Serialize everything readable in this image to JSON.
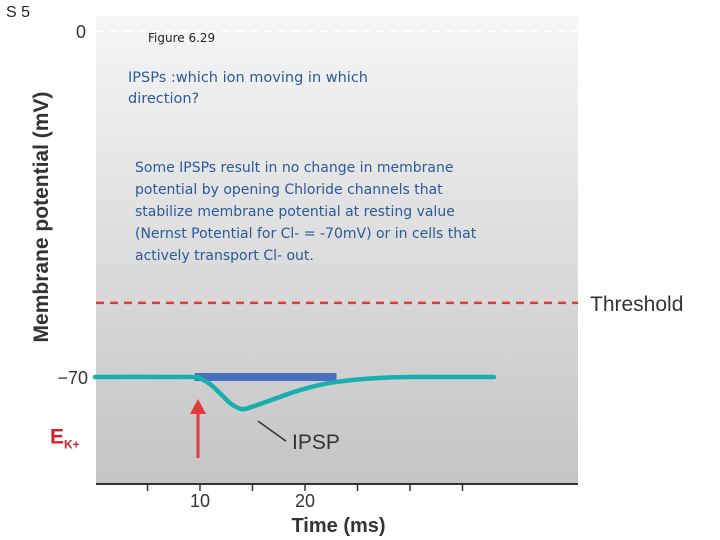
{
  "slide_label": "S 5",
  "annotations": {
    "figure_caption": "Figure 6.29",
    "question": "IPSPs :which ion moving in which direction?",
    "explanation": "Some IPSPs result in no change in membrane potential by opening  Chloride channels that stabilize membrane potential at resting value (Nernst Potential for Cl- = -70mV) or in cells that actively transport Cl- out."
  },
  "colors": {
    "trace": "#1aaeae",
    "threshold": "#e0393d",
    "stimulus_arrow": "#e0393d",
    "bar": "#4a6fc0",
    "ek_label": "#d8202a",
    "zero_line": "#ffffff",
    "plot_gradient_top": "#f6f6f6",
    "plot_gradient_bottom": "#c4c4c4"
  },
  "chart_data": {
    "type": "line",
    "xlabel": "Time (ms)",
    "ylabel": "Membrane potential (mV)",
    "xlim": [
      0,
      38
    ],
    "ylim": [
      -85,
      0
    ],
    "x_ticks": [
      10,
      20
    ],
    "y_tick_labels": [
      {
        "value": 0,
        "label": "0"
      },
      {
        "value": -70,
        "label": "−70"
      }
    ],
    "threshold": {
      "value": -55,
      "label": "Threshold"
    },
    "zero_reference": {
      "value": 0
    },
    "ek_label": {
      "main": "E",
      "sub": "K+",
      "value": -82
    },
    "stimulus_time": 10,
    "series": [
      {
        "name": "IPSP",
        "x": [
          0,
          9,
          10,
          11,
          12,
          13,
          14,
          15,
          17,
          19,
          21,
          23,
          25,
          27,
          30,
          34,
          38
        ],
        "y": [
          -70,
          -70,
          -70.3,
          -71.5,
          -73.5,
          -75.5,
          -76.5,
          -76,
          -74.5,
          -73,
          -71.8,
          -71,
          -70.5,
          -70.2,
          -70,
          -70,
          -70
        ]
      }
    ],
    "baseline_bar": {
      "x": [
        9.5,
        23
      ],
      "y": -70
    }
  }
}
